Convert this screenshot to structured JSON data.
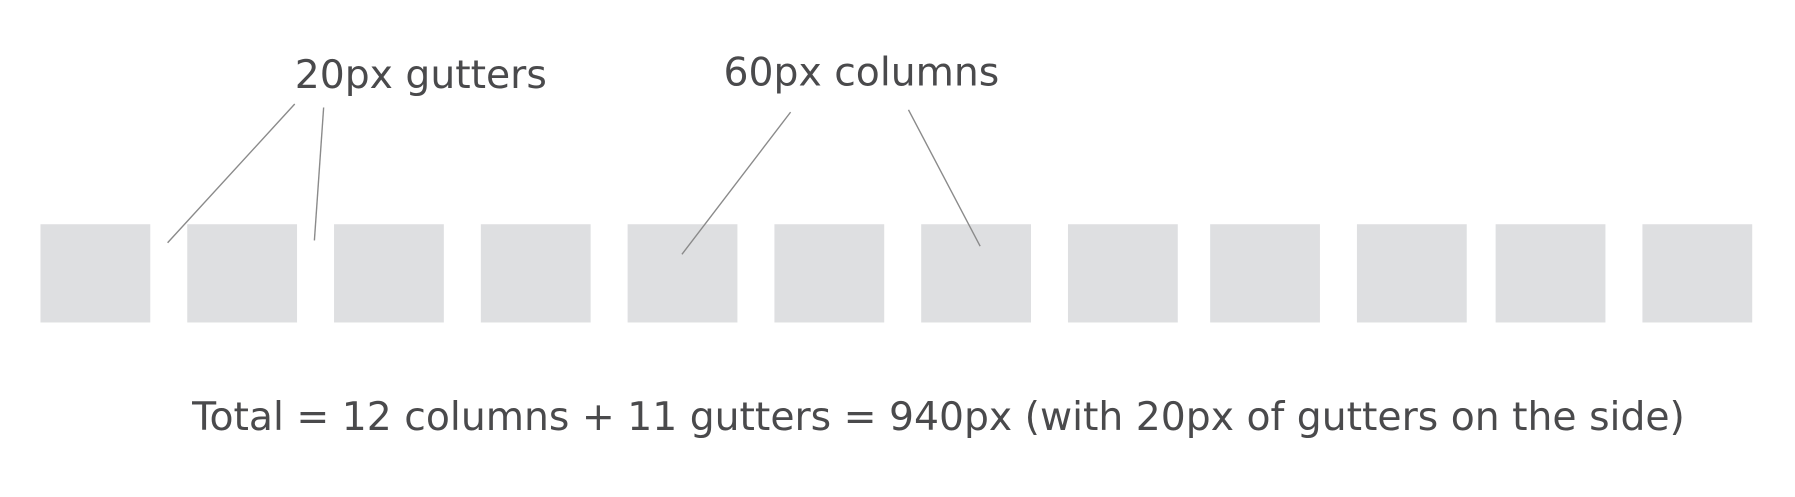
{
  "labels": {
    "gutters": "20px gutters",
    "columns": "60px columns"
  },
  "caption": "Total = 12 columns + 11 gutters = 940px (with 20px of gutters on the side)"
}
